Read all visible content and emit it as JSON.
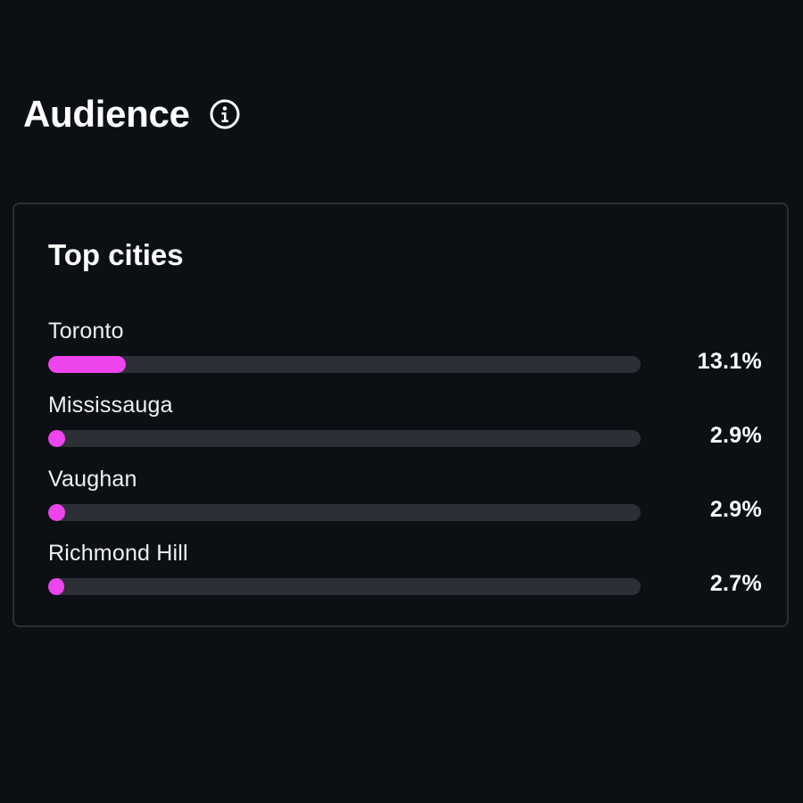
{
  "header": {
    "title": "Audience",
    "info_icon": "info-icon"
  },
  "card": {
    "title": "Top cities",
    "max_percent": 100
  },
  "colors": {
    "background": "#0c1014",
    "card_border": "#2b3036",
    "bar_track": "#2c3036",
    "bar_fill": "#ee44ee",
    "text": "#ffffff"
  },
  "cities": [
    {
      "name": "Toronto",
      "value_label": "13.1%",
      "percent": 13.1
    },
    {
      "name": "Mississauga",
      "value_label": "2.9%",
      "percent": 2.9
    },
    {
      "name": "Vaughan",
      "value_label": "2.9%",
      "percent": 2.9
    },
    {
      "name": "Richmond Hill",
      "value_label": "2.7%",
      "percent": 2.7
    }
  ]
}
